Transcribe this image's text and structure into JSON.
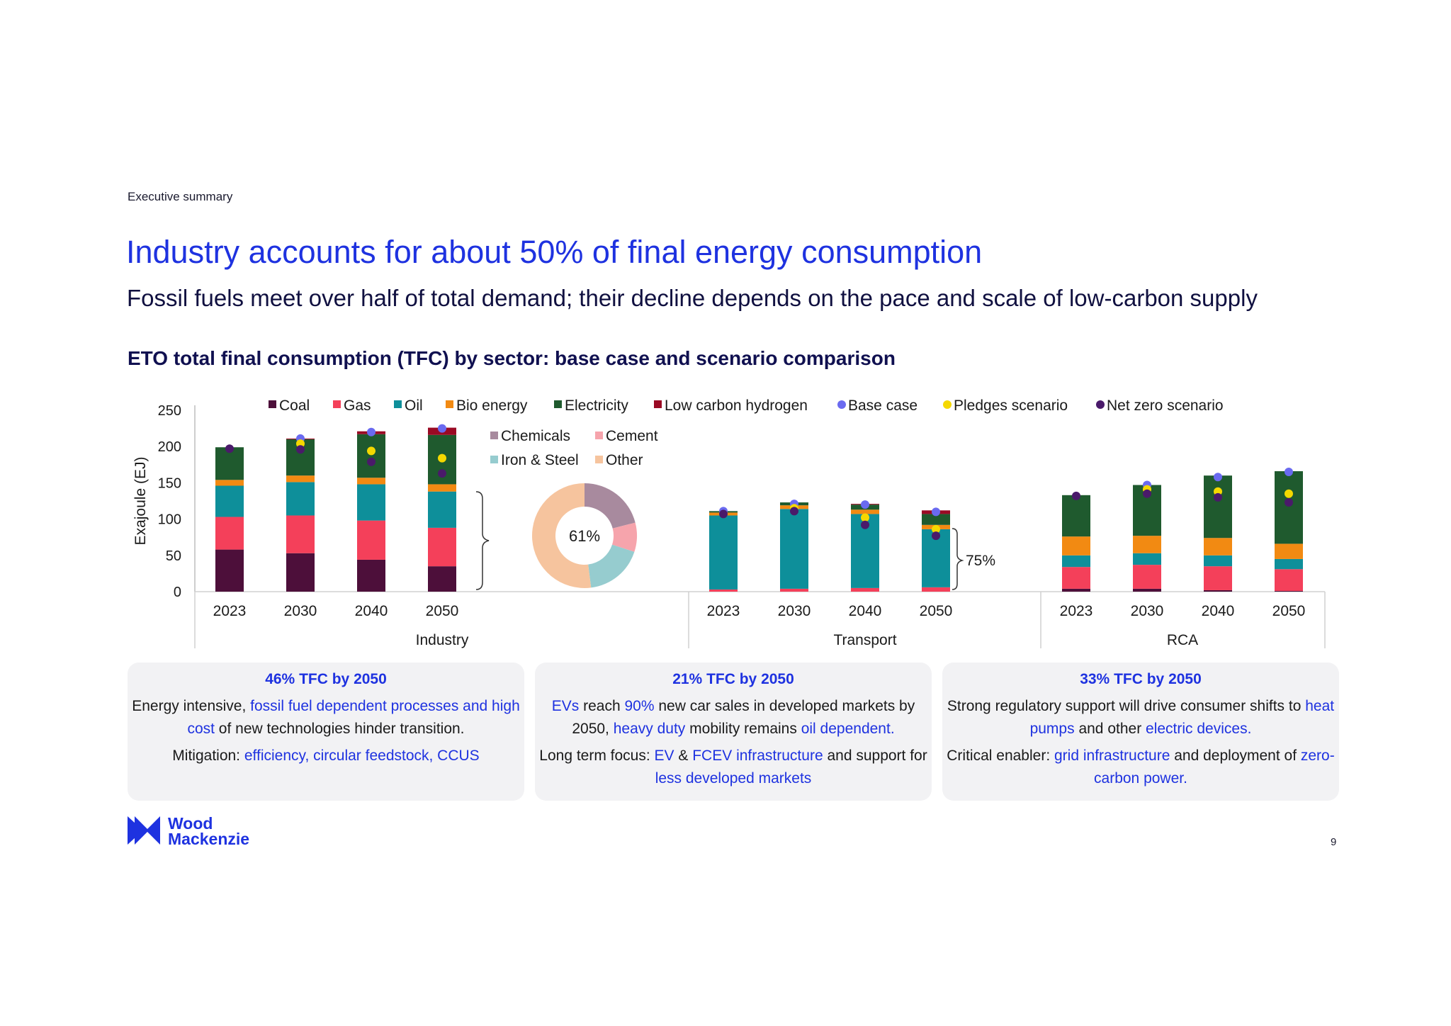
{
  "header": {
    "section": "Executive summary",
    "title": "Industry accounts for about 50% of final energy consumption",
    "subtitle": "Fossil fuels meet over half of total demand; their decline depends on the pace and scale of low-carbon supply"
  },
  "colors": {
    "Coal": "#4d0f3a",
    "Gas": "#f4405a",
    "Oil": "#0e8f9a",
    "Bio energy": "#f28a12",
    "Electricity": "#1f5a2e",
    "Low carbon hydrogen": "#9a0a24",
    "Base case": "#6a6af0",
    "Pledges scenario": "#f5d800",
    "Net zero scenario": "#4a1a6a",
    "Chemicals": "#a88a9e",
    "Cement": "#f6a4ac",
    "Iron & Steel": "#96cccf",
    "Other": "#f6c49e"
  },
  "chart_data": {
    "type": "bar",
    "title": "ETO total final consumption (TFC) by sector: base case and scenario comparison",
    "ylabel": "Exajoule (EJ)",
    "ylim": [
      0,
      250
    ],
    "yticks": [
      0,
      50,
      100,
      150,
      200,
      250
    ],
    "legend": [
      "Coal",
      "Gas",
      "Oil",
      "Bio energy",
      "Electricity",
      "Low carbon hydrogen",
      "Base case",
      "Pledges scenario",
      "Net zero scenario"
    ],
    "stack_order": [
      "Coal",
      "Gas",
      "Oil",
      "Bio energy",
      "Electricity",
      "Low carbon hydrogen"
    ],
    "groups": [
      {
        "name": "Industry",
        "years": [
          "2023",
          "2030",
          "2040",
          "2050"
        ],
        "stacks": {
          "Coal": [
            58,
            53,
            44,
            35
          ],
          "Gas": [
            45,
            52,
            54,
            53
          ],
          "Oil": [
            43,
            46,
            50,
            50
          ],
          "Bio energy": [
            8,
            9,
            9,
            10
          ],
          "Electricity": [
            45,
            50,
            60,
            68
          ],
          "Low carbon hydrogen": [
            0,
            1,
            4,
            10
          ]
        },
        "base_case": [
          null,
          211,
          220,
          225
        ],
        "pledges": [
          null,
          204,
          194,
          184
        ],
        "net_zero": [
          197,
          196,
          179,
          163
        ]
      },
      {
        "name": "Transport",
        "years": [
          "2023",
          "2030",
          "2040",
          "2050"
        ],
        "stacks": {
          "Coal": [
            0,
            0,
            0,
            0
          ],
          "Gas": [
            3,
            4,
            5,
            6
          ],
          "Oil": [
            102,
            110,
            102,
            80
          ],
          "Bio energy": [
            4,
            5,
            6,
            6
          ],
          "Electricity": [
            2,
            4,
            7,
            15
          ],
          "Low carbon hydrogen": [
            0,
            0,
            1,
            5
          ]
        },
        "base_case": [
          111,
          121,
          120,
          110
        ],
        "pledges": [
          null,
          115,
          102,
          86
        ],
        "net_zero": [
          107,
          111,
          92,
          77
        ]
      },
      {
        "name": "RCA",
        "years": [
          "2023",
          "2030",
          "2040",
          "2050"
        ],
        "stacks": {
          "Coal": [
            4,
            4,
            2,
            1
          ],
          "Gas": [
            30,
            33,
            33,
            30
          ],
          "Oil": [
            16,
            16,
            15,
            14
          ],
          "Bio energy": [
            26,
            24,
            24,
            21
          ],
          "Electricity": [
            57,
            70,
            86,
            100
          ],
          "Low carbon hydrogen": [
            0,
            0,
            0,
            0
          ]
        },
        "base_case": [
          null,
          147,
          158,
          165
        ],
        "pledges": [
          null,
          141,
          138,
          135
        ],
        "net_zero": [
          132,
          135,
          130,
          123
        ]
      }
    ],
    "industry_share_donut": {
      "center_label": "61%",
      "legend": [
        "Chemicals",
        "Cement",
        "Iron & Steel",
        "Other"
      ],
      "values": [
        21,
        9,
        18,
        52
      ]
    },
    "transport_annotation": "75%"
  },
  "boxes": [
    {
      "title": "46% TFC by 2050",
      "p1": [
        {
          "t": "Energy intensive, ",
          "hl": false
        },
        {
          "t": "fossil fuel dependent processes and high cost",
          "hl": true
        },
        {
          "t": " of new technologies hinder transition.",
          "hl": false
        }
      ],
      "p2": [
        {
          "t": "Mitigation: ",
          "hl": false
        },
        {
          "t": "efficiency, circular feedstock, CCUS",
          "hl": true
        }
      ]
    },
    {
      "title": "21% TFC by 2050",
      "p1": [
        {
          "t": "EVs",
          "hl": true
        },
        {
          "t": " reach ",
          "hl": false
        },
        {
          "t": "90%",
          "hl": true
        },
        {
          "t": " new car sales in developed markets by 2050, ",
          "hl": false
        },
        {
          "t": "heavy duty",
          "hl": true
        },
        {
          "t": " mobility remains ",
          "hl": false
        },
        {
          "t": "oil dependent.",
          "hl": true
        }
      ],
      "p2": [
        {
          "t": "Long term focus: ",
          "hl": false
        },
        {
          "t": "EV",
          "hl": true
        },
        {
          "t": " & ",
          "hl": false
        },
        {
          "t": "FCEV infrastructure",
          "hl": true
        },
        {
          "t": " and support for ",
          "hl": false
        },
        {
          "t": "less developed markets",
          "hl": true
        }
      ]
    },
    {
      "title": "33% TFC by 2050",
      "p1": [
        {
          "t": "Strong regulatory support will drive consumer shifts to ",
          "hl": false
        },
        {
          "t": "heat pumps",
          "hl": true
        },
        {
          "t": " and other ",
          "hl": false
        },
        {
          "t": "electric devices.",
          "hl": true
        }
      ],
      "p2": [
        {
          "t": "Critical enabler: ",
          "hl": false
        },
        {
          "t": "grid infrastructure",
          "hl": true
        },
        {
          "t": " and deployment of ",
          "hl": false
        },
        {
          "t": "zero-carbon power.",
          "hl": true
        }
      ]
    }
  ],
  "footer": {
    "logo_line1": "Wood",
    "logo_line2": "Mackenzie",
    "page_number": "9"
  }
}
